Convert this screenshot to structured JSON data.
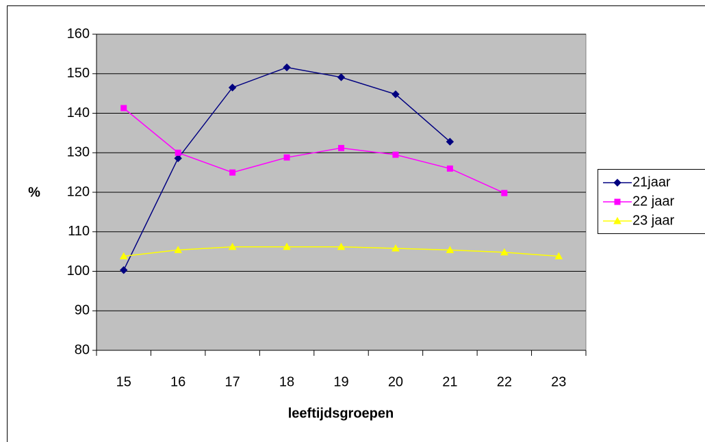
{
  "chart_data": {
    "type": "line",
    "categories": [
      "15",
      "16",
      "17",
      "18",
      "19",
      "20",
      "21",
      "22",
      "23"
    ],
    "series": [
      {
        "name": "21jaar",
        "color": "#000080",
        "marker": "diamond",
        "values": [
          100.3,
          128.6,
          146.5,
          151.6,
          149.1,
          144.8,
          132.8,
          null,
          null
        ]
      },
      {
        "name": "22 jaar",
        "color": "#ff00ff",
        "marker": "square",
        "values": [
          141.3,
          130.0,
          125.0,
          128.8,
          131.2,
          129.5,
          126.0,
          119.8,
          null
        ]
      },
      {
        "name": "23 jaar",
        "color": "#ffff00",
        "marker": "triangle",
        "values": [
          103.8,
          105.4,
          106.2,
          106.2,
          106.2,
          105.8,
          105.4,
          104.8,
          103.8
        ]
      }
    ],
    "ylim": [
      80,
      160
    ],
    "yticks": [
      80,
      90,
      100,
      110,
      120,
      130,
      140,
      150,
      160
    ],
    "y_label": "%",
    "x_label": "leeftijdsgroepen",
    "grid": true,
    "legend": "right",
    "plot_background": "#c0c0c0"
  }
}
